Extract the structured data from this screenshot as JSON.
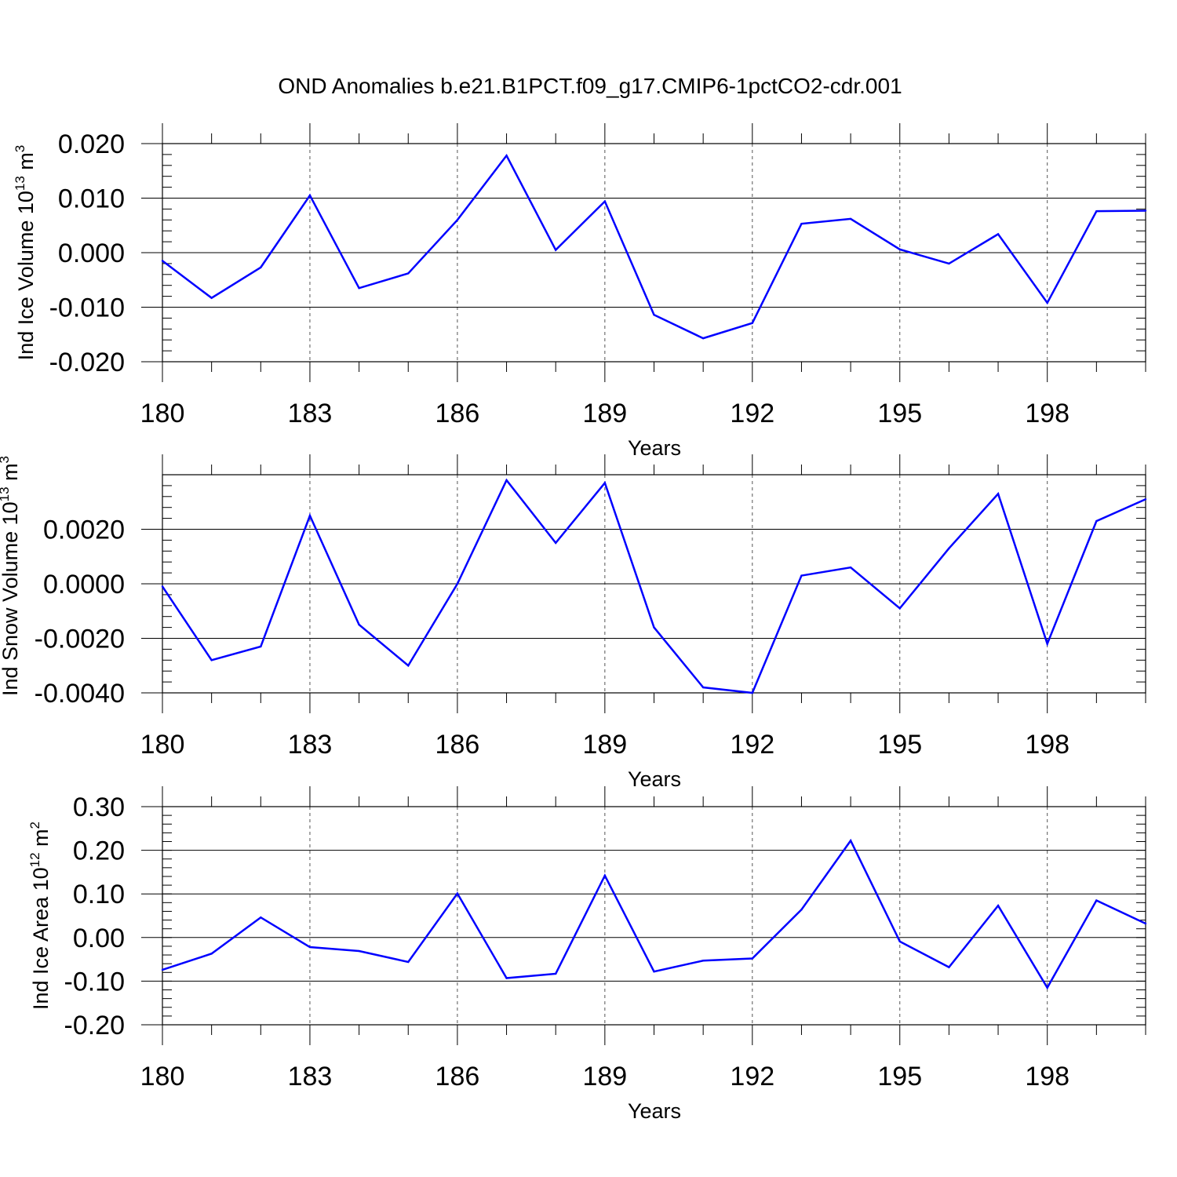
{
  "chart_data": {
    "type": "line",
    "title": "OND Anomalies b.e21.B1PCT.f09_g17.CMIP6-1pctCO2-cdr.001",
    "x": [
      180,
      181,
      182,
      183,
      184,
      185,
      186,
      187,
      188,
      189,
      190,
      191,
      192,
      193,
      194,
      195,
      196,
      197,
      198,
      199,
      200
    ],
    "xlim": [
      180,
      200
    ],
    "xticks": [
      180,
      183,
      186,
      189,
      192,
      195,
      198
    ],
    "xtick_labels": [
      "180",
      "183",
      "186",
      "189",
      "192",
      "195",
      "198"
    ],
    "line_color": "#0000ff",
    "panels": [
      {
        "name": "ice-volume",
        "ylabel_main": "Ind Ice Volume 10",
        "ylabel_exp": "13",
        "ylabel_unit": " m",
        "ylabel_unit_exp": "3",
        "xlabel": "Years",
        "ylim": [
          -0.02,
          0.02
        ],
        "yticks": [
          0.02,
          0.01,
          0.0,
          -0.01,
          -0.02
        ],
        "ytick_labels": [
          "0.020",
          "0.010",
          "0.000",
          "-0.010",
          "-0.020"
        ],
        "values": [
          -0.0015,
          -0.0083,
          -0.0027,
          0.0105,
          -0.0065,
          -0.0038,
          0.006,
          0.0178,
          0.0005,
          0.0094,
          -0.0114,
          -0.0157,
          -0.0129,
          0.0053,
          0.0062,
          0.0006,
          -0.002,
          0.0034,
          -0.0092,
          0.0076,
          0.0077
        ]
      },
      {
        "name": "snow-volume",
        "ylabel_main": "Ind Snow Volume 10",
        "ylabel_exp": "13",
        "ylabel_unit": " m",
        "ylabel_unit_exp": "3",
        "xlabel": "Years",
        "ylim": [
          -0.004,
          0.004
        ],
        "yticks": [
          0.002,
          0.0,
          -0.002,
          -0.004
        ],
        "ytick_labels": [
          "0.0020",
          "0.0000",
          "-0.0020",
          "-0.0040"
        ],
        "values": [
          -0.0001,
          -0.0028,
          -0.0023,
          0.0025,
          -0.0015,
          -0.003,
          0.0,
          0.0038,
          0.0015,
          0.0037,
          -0.0016,
          -0.0038,
          -0.004,
          0.0003,
          0.0006,
          -0.0009,
          0.0013,
          0.0033,
          -0.0022,
          0.0023,
          0.0031
        ]
      },
      {
        "name": "ice-area",
        "ylabel_main": "Ind Ice Area 10",
        "ylabel_exp": "12",
        "ylabel_unit": " m",
        "ylabel_unit_exp": "2",
        "xlabel": "Years",
        "ylim": [
          -0.2,
          0.3
        ],
        "yticks": [
          0.3,
          0.2,
          0.1,
          0.0,
          -0.1,
          -0.2
        ],
        "ytick_labels": [
          "0.30",
          "0.20",
          "0.10",
          "0.00",
          "-0.10",
          "-0.20"
        ],
        "values": [
          -0.074,
          -0.037,
          0.046,
          -0.022,
          -0.031,
          -0.056,
          0.101,
          -0.093,
          -0.083,
          0.142,
          -0.078,
          -0.053,
          -0.048,
          0.064,
          0.222,
          -0.009,
          -0.068,
          0.073,
          -0.115,
          0.085,
          0.032
        ]
      }
    ]
  }
}
